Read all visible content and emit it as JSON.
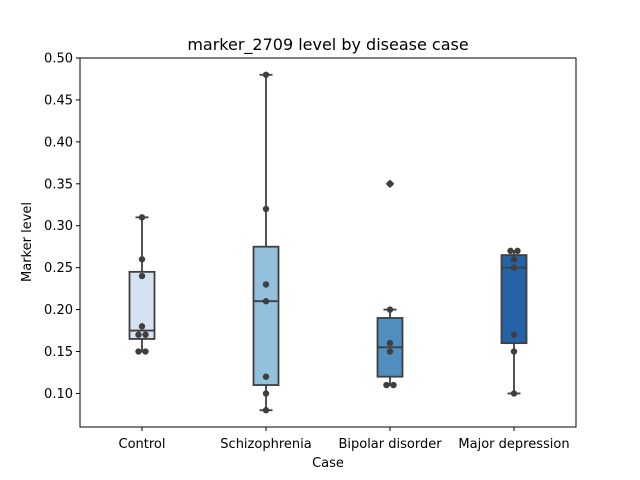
{
  "chart_data": {
    "type": "box",
    "title": "marker_2709 level by disease case",
    "xlabel": "Case",
    "ylabel": "Marker level",
    "ylim": [
      0.06,
      0.5
    ],
    "yticks": [
      0.1,
      0.15,
      0.2,
      0.25,
      0.3,
      0.35,
      0.4,
      0.45,
      0.5
    ],
    "ytick_labels": [
      "0.10",
      "0.15",
      "0.20",
      "0.25",
      "0.30",
      "0.35",
      "0.40",
      "0.45",
      "0.50"
    ],
    "categories": [
      "Control",
      "Schizophrenia",
      "Bipolar disorder",
      "Major depression"
    ],
    "colors": [
      "#d4e2f1",
      "#93c0dc",
      "#4f8ebe",
      "#2563a6"
    ],
    "edge_color": "#3f3f3f",
    "point_color": "#3f3f3f",
    "grid": false,
    "boxes": [
      {
        "whisker_low": 0.15,
        "q1": 0.165,
        "median": 0.175,
        "q3": 0.245,
        "whisker_high": 0.31,
        "outliers": []
      },
      {
        "whisker_low": 0.08,
        "q1": 0.11,
        "median": 0.21,
        "q3": 0.275,
        "whisker_high": 0.48,
        "outliers": []
      },
      {
        "whisker_low": 0.11,
        "q1": 0.12,
        "median": 0.155,
        "q3": 0.19,
        "whisker_high": 0.2,
        "outliers": [
          0.35
        ]
      },
      {
        "whisker_low": 0.1,
        "q1": 0.16,
        "median": 0.25,
        "q3": 0.265,
        "whisker_high": 0.27,
        "outliers": []
      }
    ],
    "points": [
      [
        0.31,
        0.26,
        0.24,
        0.18,
        0.17,
        0.17,
        0.15,
        0.15
      ],
      [
        0.48,
        0.32,
        0.23,
        0.21,
        0.12,
        0.1,
        0.08
      ],
      [
        0.35,
        0.2,
        0.16,
        0.15,
        0.11,
        0.11
      ],
      [
        0.27,
        0.27,
        0.26,
        0.25,
        0.17,
        0.15,
        0.1
      ]
    ]
  }
}
